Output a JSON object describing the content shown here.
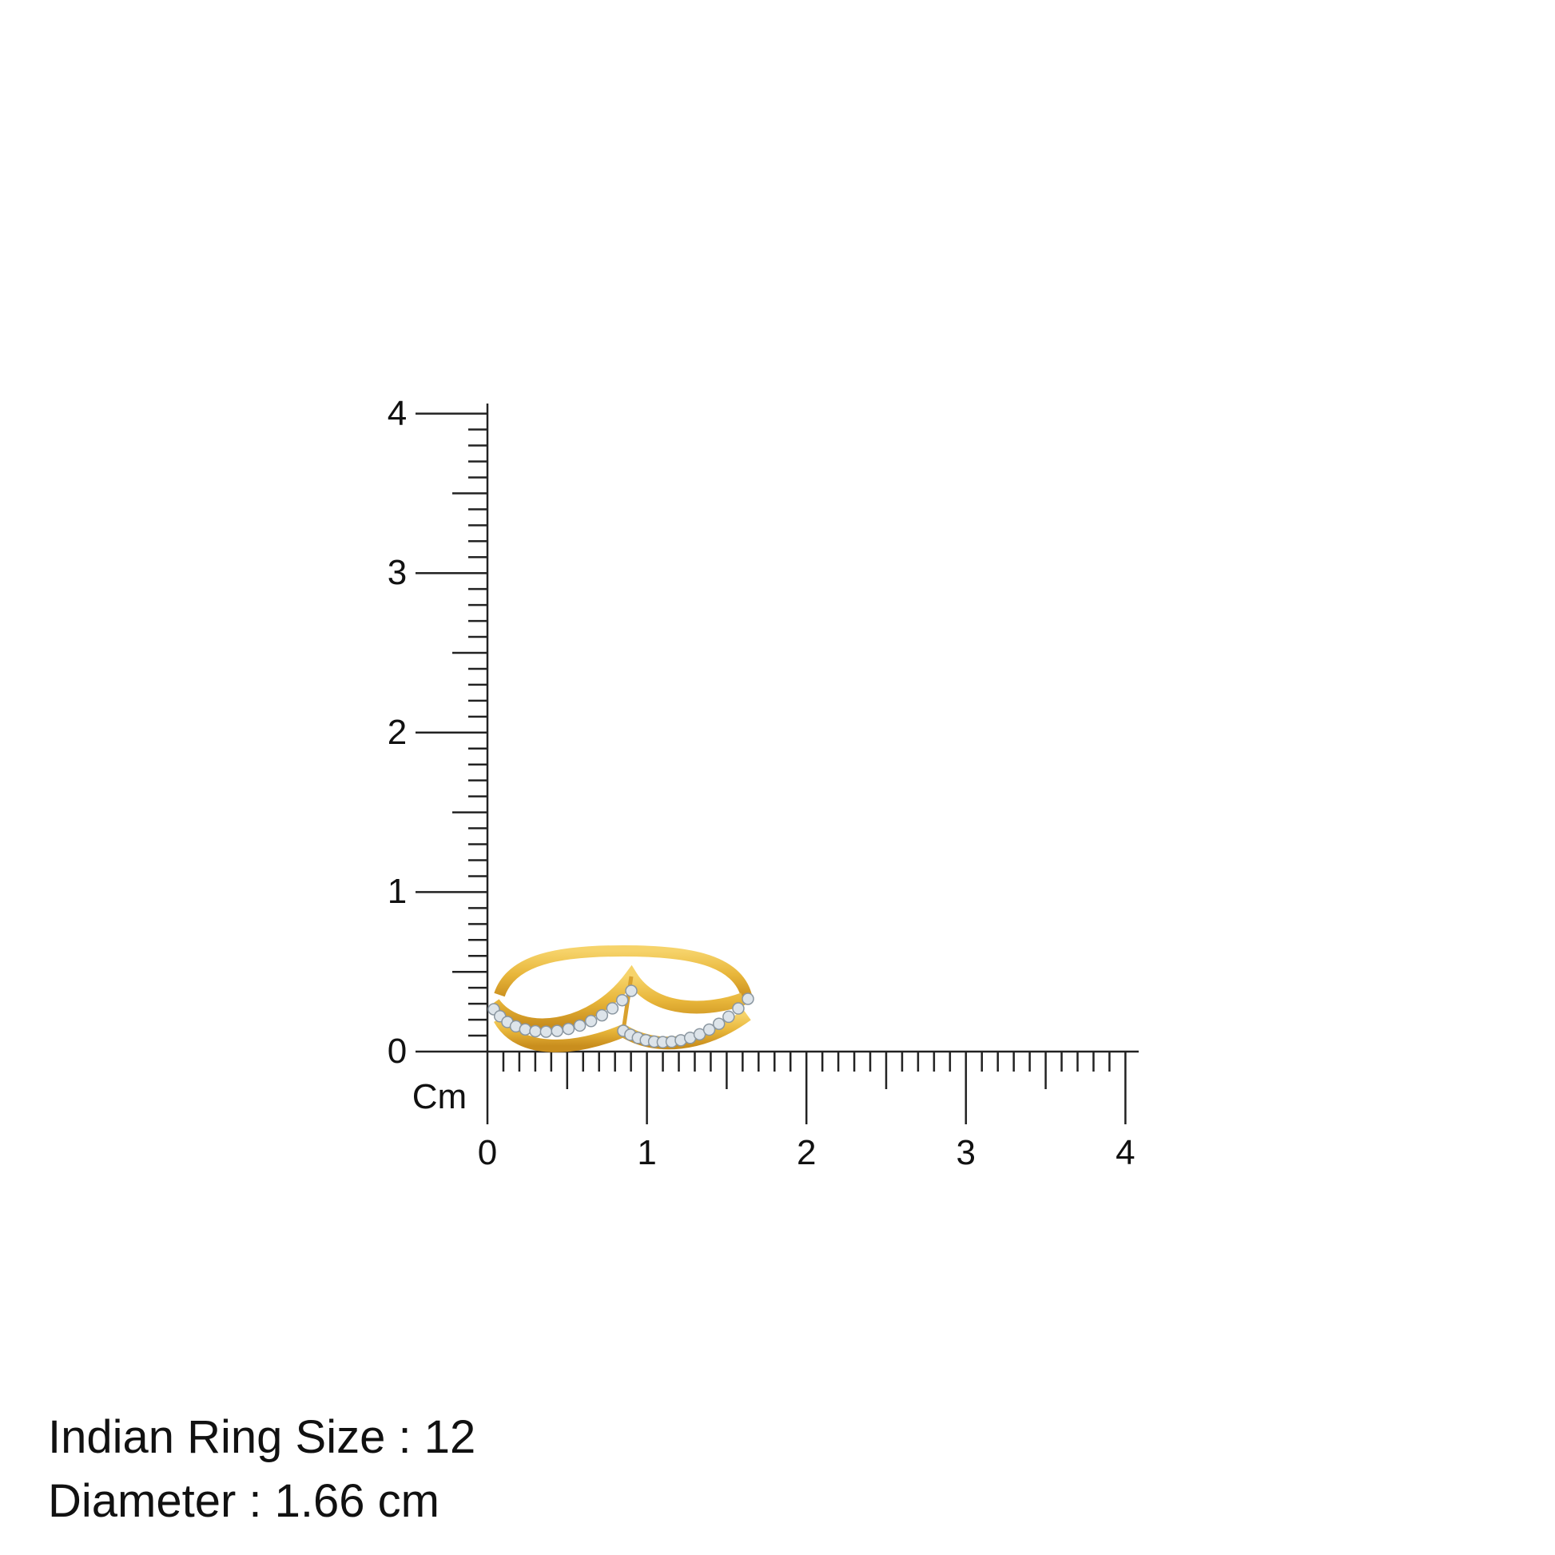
{
  "ruler": {
    "unit_label": "Cm",
    "x_tick_labels": [
      "0",
      "1",
      "2",
      "3",
      "4"
    ],
    "y_tick_labels": [
      "0",
      "1",
      "2",
      "3",
      "4"
    ],
    "y_zero_label": "0"
  },
  "product": {
    "metal_color": "#E8B63A",
    "stone_color": "#DDE4EA"
  },
  "info": {
    "ring_size": "Indian Ring Size : 12",
    "diameter": "Diameter : 1.66 cm"
  }
}
